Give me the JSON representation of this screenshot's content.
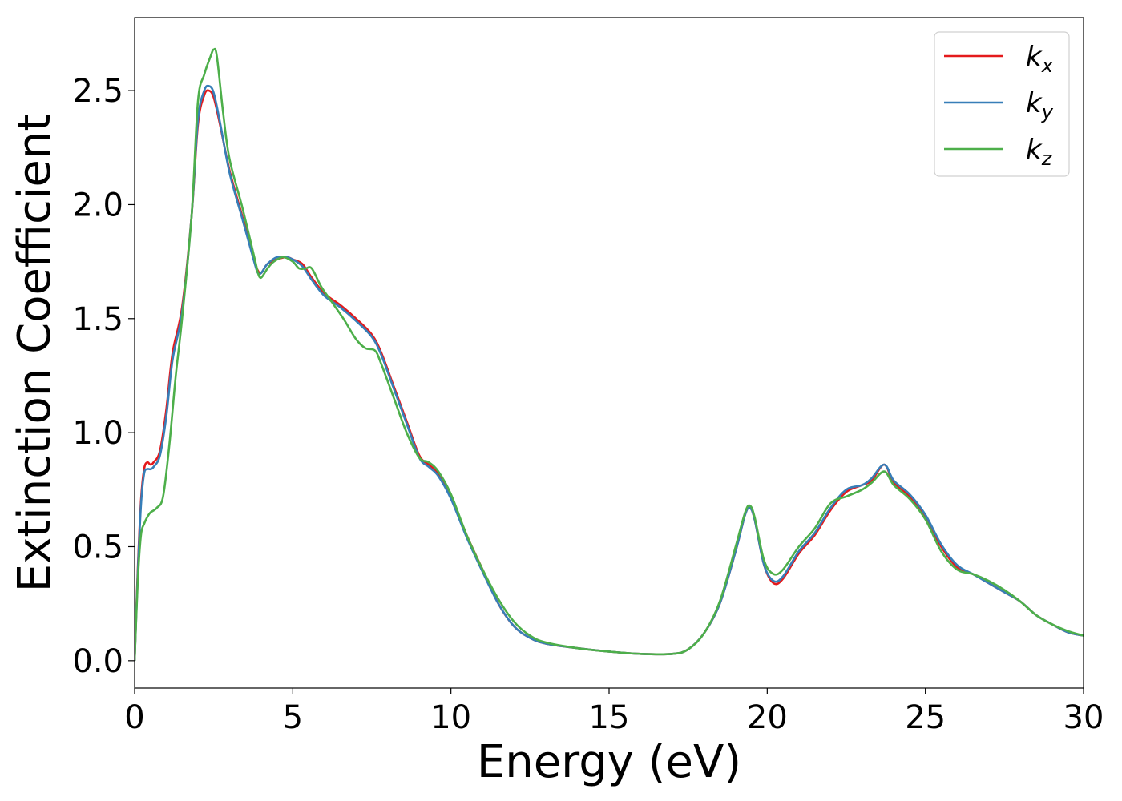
{
  "chart_data": {
    "type": "line",
    "xlabel": "Energy (eV)",
    "ylabel": "Extinction Coefficient",
    "xlim": [
      0,
      30
    ],
    "ylim": [
      -0.12,
      2.82
    ],
    "xticks": [
      0,
      5,
      10,
      15,
      20,
      25,
      30
    ],
    "xtick_labels": [
      "0",
      "5",
      "10",
      "15",
      "20",
      "25",
      "30"
    ],
    "yticks": [
      0.0,
      0.5,
      1.0,
      1.5,
      2.0,
      2.5
    ],
    "ytick_labels": [
      "0.0",
      "0.5",
      "1.0",
      "1.5",
      "2.0",
      "2.5"
    ],
    "grid": false,
    "legend_position": "top-right",
    "series": [
      {
        "name": "k_x",
        "label_main": "k",
        "label_sub": "x",
        "color": "#e41a1c",
        "points": [
          [
            0,
            0
          ],
          [
            0.1,
            0.4
          ],
          [
            0.2,
            0.7
          ],
          [
            0.3,
            0.84
          ],
          [
            0.4,
            0.87
          ],
          [
            0.5,
            0.86
          ],
          [
            0.6,
            0.87
          ],
          [
            0.8,
            0.92
          ],
          [
            1.0,
            1.1
          ],
          [
            1.2,
            1.35
          ],
          [
            1.5,
            1.55
          ],
          [
            1.8,
            1.95
          ],
          [
            2.0,
            2.35
          ],
          [
            2.2,
            2.48
          ],
          [
            2.35,
            2.5
          ],
          [
            2.5,
            2.47
          ],
          [
            2.7,
            2.35
          ],
          [
            3.0,
            2.15
          ],
          [
            3.4,
            1.95
          ],
          [
            3.8,
            1.75
          ],
          [
            3.9,
            1.71
          ],
          [
            4.0,
            1.7
          ],
          [
            4.2,
            1.74
          ],
          [
            4.5,
            1.76
          ],
          [
            4.8,
            1.77
          ],
          [
            5.0,
            1.76
          ],
          [
            5.3,
            1.74
          ],
          [
            5.6,
            1.68
          ],
          [
            6.0,
            1.61
          ],
          [
            6.5,
            1.56
          ],
          [
            7.0,
            1.5
          ],
          [
            7.5,
            1.43
          ],
          [
            7.8,
            1.35
          ],
          [
            8.2,
            1.2
          ],
          [
            8.6,
            1.05
          ],
          [
            9.0,
            0.9
          ],
          [
            9.3,
            0.86
          ],
          [
            9.6,
            0.82
          ],
          [
            10.0,
            0.72
          ],
          [
            10.5,
            0.55
          ],
          [
            11.0,
            0.4
          ],
          [
            11.5,
            0.25
          ],
          [
            12.0,
            0.15
          ],
          [
            12.5,
            0.1
          ],
          [
            13.0,
            0.075
          ],
          [
            14.0,
            0.055
          ],
          [
            15.0,
            0.04
          ],
          [
            16.0,
            0.03
          ],
          [
            17.0,
            0.03
          ],
          [
            17.5,
            0.05
          ],
          [
            18.0,
            0.12
          ],
          [
            18.5,
            0.25
          ],
          [
            19.0,
            0.48
          ],
          [
            19.3,
            0.64
          ],
          [
            19.45,
            0.67
          ],
          [
            19.6,
            0.62
          ],
          [
            19.9,
            0.42
          ],
          [
            20.2,
            0.34
          ],
          [
            20.5,
            0.36
          ],
          [
            21.0,
            0.47
          ],
          [
            21.5,
            0.55
          ],
          [
            22.0,
            0.66
          ],
          [
            22.5,
            0.74
          ],
          [
            23.0,
            0.77
          ],
          [
            23.3,
            0.79
          ],
          [
            23.7,
            0.86
          ],
          [
            24.0,
            0.78
          ],
          [
            24.5,
            0.72
          ],
          [
            25.0,
            0.63
          ],
          [
            25.5,
            0.5
          ],
          [
            26.0,
            0.41
          ],
          [
            26.5,
            0.38
          ],
          [
            27.0,
            0.34
          ],
          [
            27.5,
            0.3
          ],
          [
            28.0,
            0.26
          ],
          [
            28.5,
            0.2
          ],
          [
            29.0,
            0.16
          ],
          [
            29.5,
            0.125
          ],
          [
            30.0,
            0.11
          ]
        ]
      },
      {
        "name": "k_y",
        "label_main": "k",
        "label_sub": "y",
        "color": "#377eb8",
        "points": [
          [
            0,
            0
          ],
          [
            0.1,
            0.38
          ],
          [
            0.2,
            0.68
          ],
          [
            0.3,
            0.82
          ],
          [
            0.4,
            0.84
          ],
          [
            0.5,
            0.84
          ],
          [
            0.6,
            0.85
          ],
          [
            0.8,
            0.9
          ],
          [
            1.0,
            1.07
          ],
          [
            1.2,
            1.32
          ],
          [
            1.5,
            1.53
          ],
          [
            1.8,
            1.95
          ],
          [
            2.0,
            2.37
          ],
          [
            2.2,
            2.5
          ],
          [
            2.35,
            2.52
          ],
          [
            2.5,
            2.49
          ],
          [
            2.7,
            2.36
          ],
          [
            3.0,
            2.14
          ],
          [
            3.4,
            1.94
          ],
          [
            3.8,
            1.74
          ],
          [
            3.9,
            1.7
          ],
          [
            4.0,
            1.7
          ],
          [
            4.2,
            1.74
          ],
          [
            4.5,
            1.77
          ],
          [
            4.8,
            1.77
          ],
          [
            5.0,
            1.76
          ],
          [
            5.3,
            1.73
          ],
          [
            5.6,
            1.67
          ],
          [
            6.0,
            1.6
          ],
          [
            6.5,
            1.55
          ],
          [
            7.0,
            1.49
          ],
          [
            7.5,
            1.42
          ],
          [
            7.8,
            1.34
          ],
          [
            8.2,
            1.19
          ],
          [
            8.6,
            1.04
          ],
          [
            9.0,
            0.89
          ],
          [
            9.3,
            0.85
          ],
          [
            9.6,
            0.81
          ],
          [
            10.0,
            0.71
          ],
          [
            10.5,
            0.54
          ],
          [
            11.0,
            0.39
          ],
          [
            11.5,
            0.25
          ],
          [
            12.0,
            0.15
          ],
          [
            12.5,
            0.1
          ],
          [
            13.0,
            0.075
          ],
          [
            14.0,
            0.055
          ],
          [
            15.0,
            0.04
          ],
          [
            16.0,
            0.03
          ],
          [
            17.0,
            0.03
          ],
          [
            17.5,
            0.05
          ],
          [
            18.0,
            0.12
          ],
          [
            18.5,
            0.25
          ],
          [
            19.0,
            0.48
          ],
          [
            19.3,
            0.64
          ],
          [
            19.45,
            0.67
          ],
          [
            19.6,
            0.62
          ],
          [
            19.9,
            0.42
          ],
          [
            20.2,
            0.35
          ],
          [
            20.5,
            0.37
          ],
          [
            21.0,
            0.48
          ],
          [
            21.5,
            0.56
          ],
          [
            22.0,
            0.67
          ],
          [
            22.5,
            0.75
          ],
          [
            23.0,
            0.77
          ],
          [
            23.3,
            0.8
          ],
          [
            23.7,
            0.86
          ],
          [
            24.0,
            0.79
          ],
          [
            24.5,
            0.73
          ],
          [
            25.0,
            0.64
          ],
          [
            25.5,
            0.51
          ],
          [
            26.0,
            0.42
          ],
          [
            26.5,
            0.38
          ],
          [
            27.0,
            0.34
          ],
          [
            27.5,
            0.3
          ],
          [
            28.0,
            0.26
          ],
          [
            28.5,
            0.2
          ],
          [
            29.0,
            0.16
          ],
          [
            29.5,
            0.125
          ],
          [
            30.0,
            0.11
          ]
        ]
      },
      {
        "name": "k_z",
        "label_main": "k",
        "label_sub": "z",
        "color": "#4daf4a",
        "points": [
          [
            0,
            0
          ],
          [
            0.1,
            0.35
          ],
          [
            0.2,
            0.55
          ],
          [
            0.3,
            0.6
          ],
          [
            0.4,
            0.63
          ],
          [
            0.5,
            0.65
          ],
          [
            0.7,
            0.67
          ],
          [
            0.9,
            0.72
          ],
          [
            1.1,
            0.95
          ],
          [
            1.3,
            1.25
          ],
          [
            1.5,
            1.5
          ],
          [
            1.8,
            1.95
          ],
          [
            2.0,
            2.45
          ],
          [
            2.2,
            2.57
          ],
          [
            2.4,
            2.65
          ],
          [
            2.5,
            2.68
          ],
          [
            2.6,
            2.65
          ],
          [
            2.8,
            2.4
          ],
          [
            3.0,
            2.2
          ],
          [
            3.4,
            1.99
          ],
          [
            3.8,
            1.76
          ],
          [
            3.9,
            1.7
          ],
          [
            4.0,
            1.68
          ],
          [
            4.2,
            1.72
          ],
          [
            4.4,
            1.75
          ],
          [
            4.7,
            1.77
          ],
          [
            5.0,
            1.75
          ],
          [
            5.2,
            1.72
          ],
          [
            5.4,
            1.72
          ],
          [
            5.6,
            1.72
          ],
          [
            5.9,
            1.64
          ],
          [
            6.2,
            1.58
          ],
          [
            6.6,
            1.5
          ],
          [
            7.0,
            1.41
          ],
          [
            7.3,
            1.37
          ],
          [
            7.6,
            1.36
          ],
          [
            7.8,
            1.3
          ],
          [
            8.2,
            1.15
          ],
          [
            8.6,
            1.0
          ],
          [
            9.0,
            0.89
          ],
          [
            9.3,
            0.87
          ],
          [
            9.6,
            0.83
          ],
          [
            10.0,
            0.73
          ],
          [
            10.5,
            0.55
          ],
          [
            11.0,
            0.4
          ],
          [
            11.5,
            0.27
          ],
          [
            12.0,
            0.17
          ],
          [
            12.5,
            0.11
          ],
          [
            13.0,
            0.08
          ],
          [
            14.0,
            0.055
          ],
          [
            15.0,
            0.04
          ],
          [
            16.0,
            0.03
          ],
          [
            17.0,
            0.03
          ],
          [
            17.5,
            0.05
          ],
          [
            18.0,
            0.12
          ],
          [
            18.5,
            0.26
          ],
          [
            19.0,
            0.5
          ],
          [
            19.3,
            0.65
          ],
          [
            19.45,
            0.68
          ],
          [
            19.6,
            0.63
          ],
          [
            19.9,
            0.44
          ],
          [
            20.2,
            0.38
          ],
          [
            20.5,
            0.4
          ],
          [
            21.0,
            0.5
          ],
          [
            21.5,
            0.58
          ],
          [
            22.0,
            0.69
          ],
          [
            22.5,
            0.72
          ],
          [
            23.0,
            0.75
          ],
          [
            23.3,
            0.78
          ],
          [
            23.7,
            0.83
          ],
          [
            24.0,
            0.77
          ],
          [
            24.5,
            0.71
          ],
          [
            25.0,
            0.62
          ],
          [
            25.5,
            0.48
          ],
          [
            26.0,
            0.4
          ],
          [
            26.5,
            0.38
          ],
          [
            27.0,
            0.35
          ],
          [
            27.5,
            0.31
          ],
          [
            28.0,
            0.26
          ],
          [
            28.5,
            0.2
          ],
          [
            29.0,
            0.16
          ],
          [
            29.5,
            0.13
          ],
          [
            30.0,
            0.11
          ]
        ]
      }
    ]
  }
}
